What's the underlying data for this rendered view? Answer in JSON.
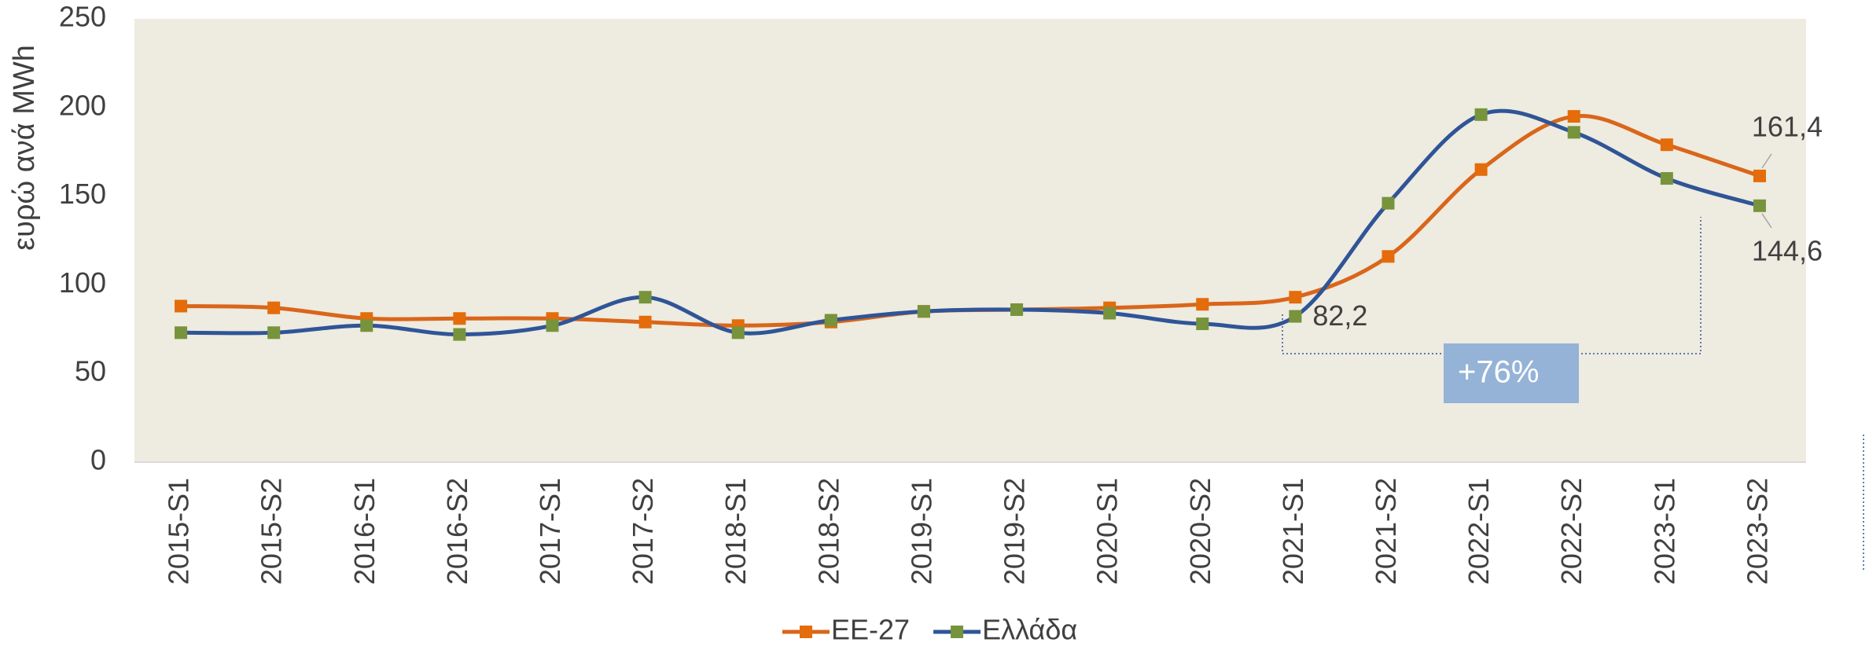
{
  "chart_data": {
    "type": "line",
    "y_label": "ευρώ ανά MWh",
    "categories": [
      "2015-S1",
      "2015-S2",
      "2016-S1",
      "2016-S2",
      "2017-S1",
      "2017-S2",
      "2018-S1",
      "2018-S2",
      "2019-S1",
      "2019-S2",
      "2020-S1",
      "2020-S2",
      "2021-S1",
      "2021-S2",
      "2022-S1",
      "2022-S2",
      "2023-S1",
      "2023-S2"
    ],
    "series": [
      {
        "name": "EE-27",
        "color": "#d9661a",
        "marker_color": "#e46c0a",
        "values": [
          88,
          87,
          81,
          81,
          81,
          79,
          77,
          79,
          85,
          86,
          87,
          89,
          93,
          116,
          165,
          195,
          179,
          161.4
        ],
        "value_labels": [
          null,
          null,
          null,
          null,
          null,
          null,
          null,
          null,
          null,
          null,
          null,
          null,
          null,
          null,
          null,
          null,
          null,
          "161,4"
        ]
      },
      {
        "name": "Ελλάδα",
        "color": "#2f5597",
        "marker_color": "#77933c",
        "values": [
          73,
          73,
          77,
          72,
          77,
          93,
          73,
          80,
          85,
          86,
          84,
          78,
          82.2,
          146,
          196,
          186,
          160,
          144.6
        ],
        "value_labels": [
          null,
          null,
          null,
          null,
          null,
          null,
          null,
          null,
          null,
          null,
          null,
          null,
          "82,2",
          null,
          null,
          null,
          null,
          "144,6"
        ]
      }
    ],
    "annotation": "+76%",
    "ylim": [
      0,
      250
    ],
    "yticks": [
      0,
      50,
      100,
      150,
      200,
      250
    ],
    "plot_background": "#eeebe0",
    "smooth": true,
    "legend": "bottom"
  }
}
